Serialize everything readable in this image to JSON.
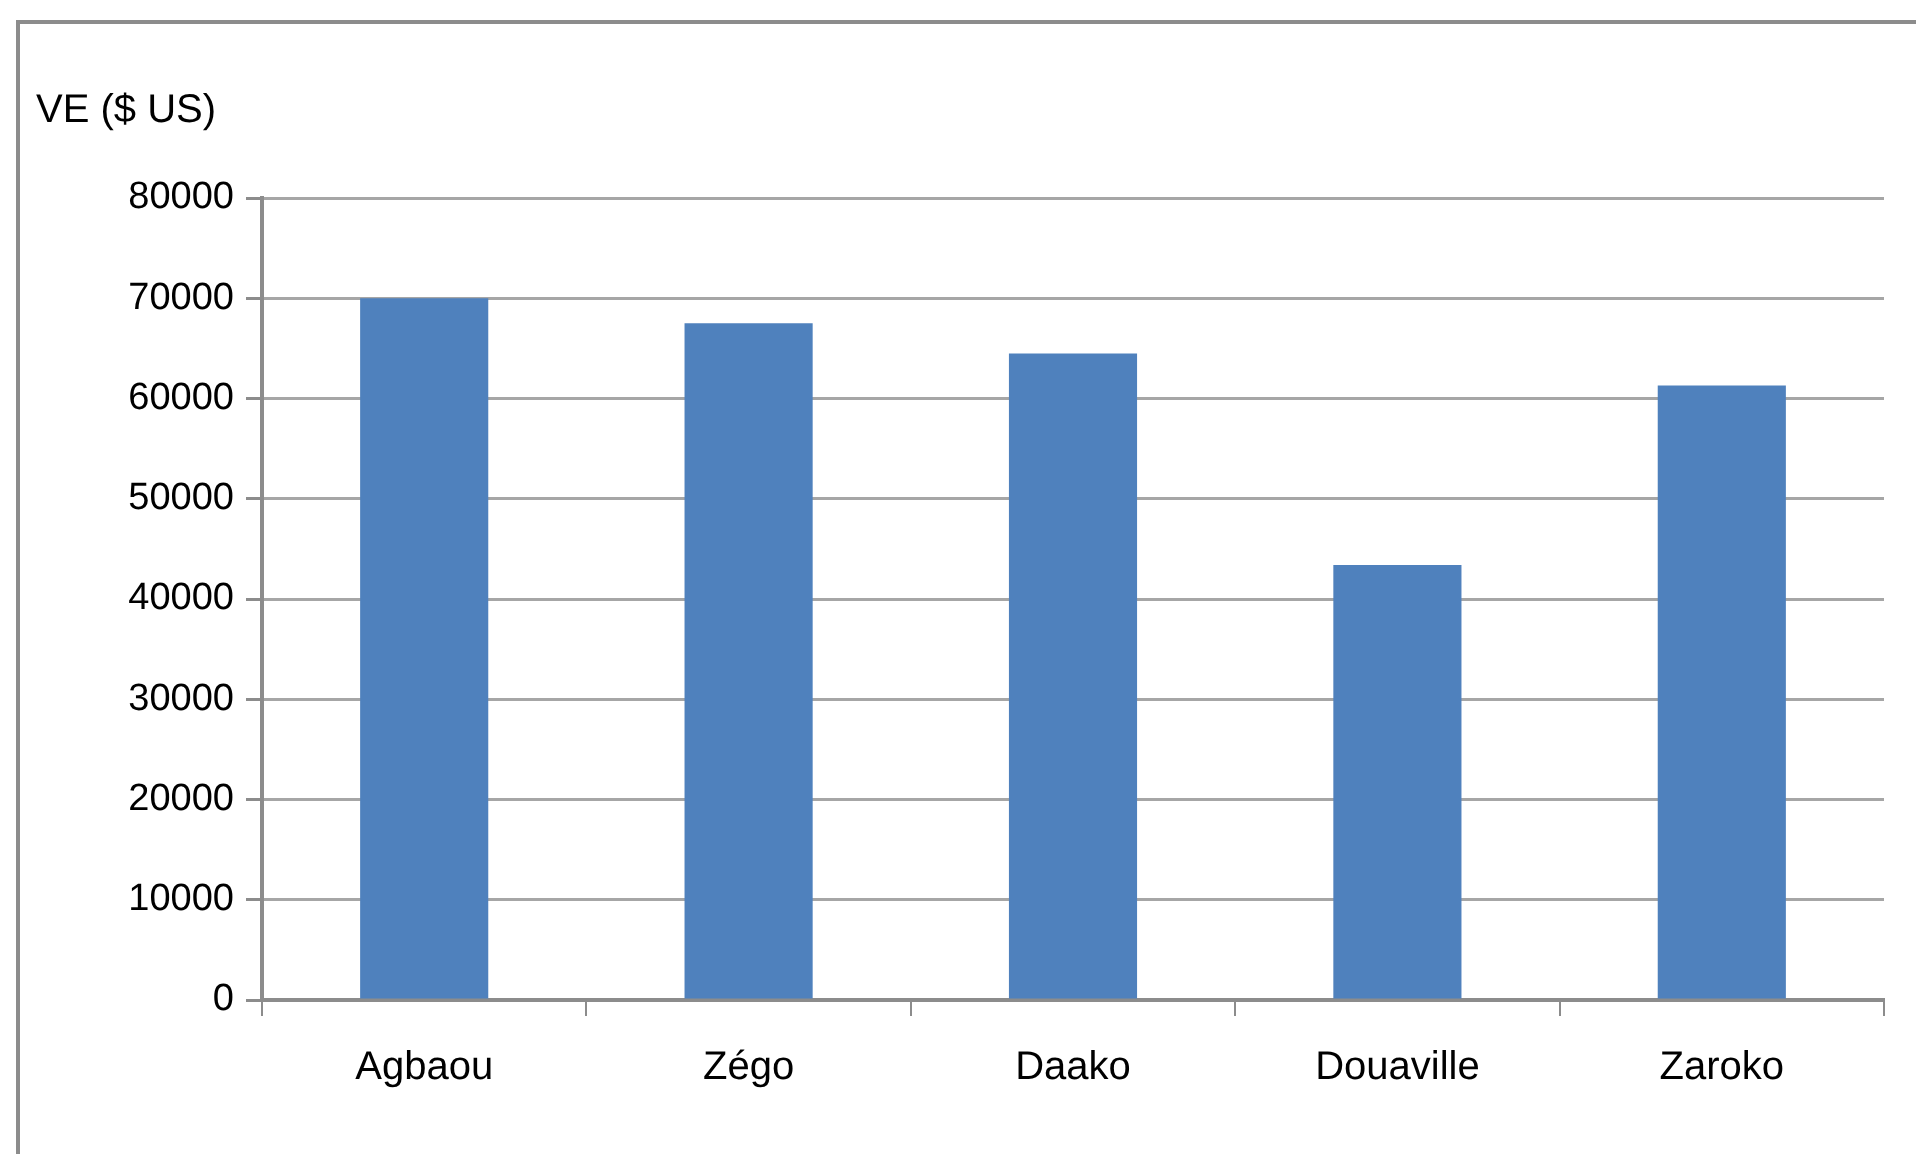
{
  "chart_data": {
    "type": "bar",
    "ylabel": "VE ($ US)",
    "categories": [
      "Agbaou",
      "Zégo",
      "Daako",
      "Douaville",
      "Zaroko"
    ],
    "values": [
      70000,
      67500,
      64500,
      43400,
      61300
    ],
    "color": "#4f81bd",
    "ylim": [
      0,
      80000
    ],
    "yticks": [
      0,
      10000,
      20000,
      30000,
      40000,
      50000,
      60000,
      70000,
      80000
    ],
    "grid": "y",
    "legend": false
  }
}
